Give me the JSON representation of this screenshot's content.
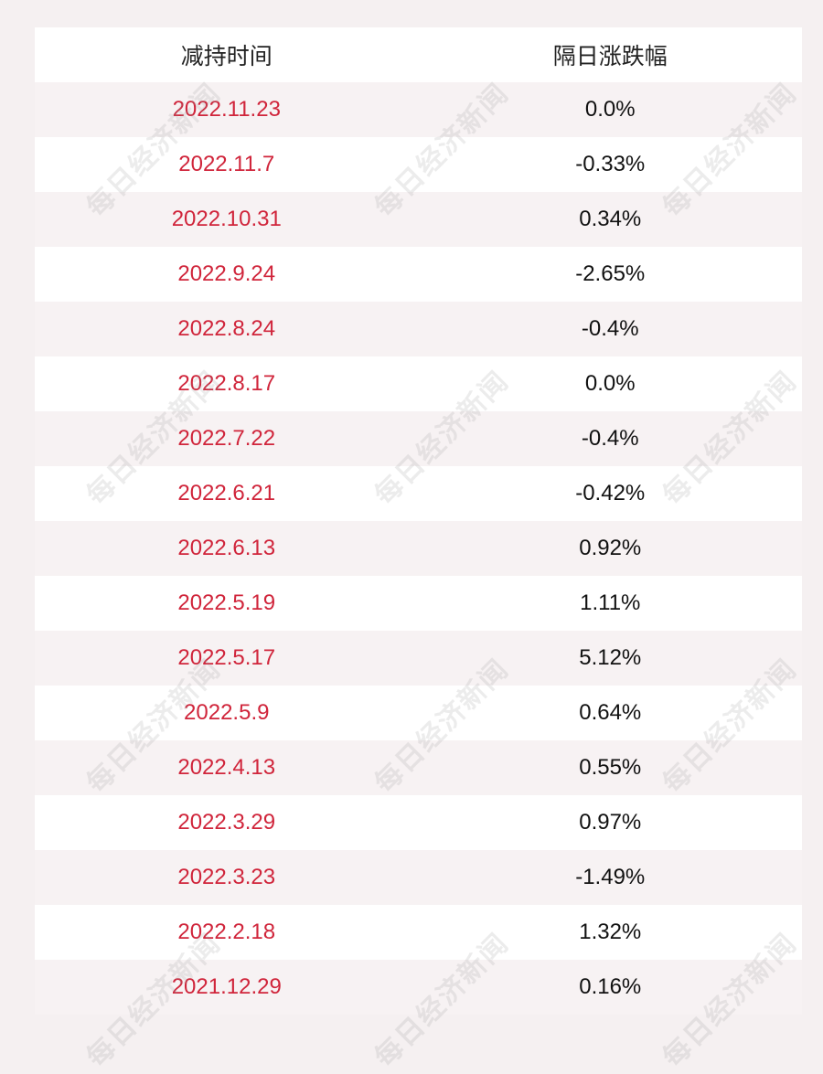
{
  "header": {
    "col_date": "减持时间",
    "col_change": "隔日涨跌幅"
  },
  "rows": [
    {
      "date": "2022.11.23",
      "change": "0.0%"
    },
    {
      "date": "2022.11.7",
      "change": "-0.33%"
    },
    {
      "date": "2022.10.31",
      "change": "0.34%"
    },
    {
      "date": "2022.9.24",
      "change": "-2.65%"
    },
    {
      "date": "2022.8.24",
      "change": "-0.4%"
    },
    {
      "date": "2022.8.17",
      "change": "0.0%"
    },
    {
      "date": "2022.7.22",
      "change": "-0.4%"
    },
    {
      "date": "2022.6.21",
      "change": "-0.42%"
    },
    {
      "date": "2022.6.13",
      "change": "0.92%"
    },
    {
      "date": "2022.5.19",
      "change": "1.11%"
    },
    {
      "date": "2022.5.17",
      "change": "5.12%"
    },
    {
      "date": "2022.5.9",
      "change": "0.64%"
    },
    {
      "date": "2022.4.13",
      "change": "0.55%"
    },
    {
      "date": "2022.3.29",
      "change": "0.97%"
    },
    {
      "date": "2022.3.23",
      "change": "-1.49%"
    },
    {
      "date": "2022.2.18",
      "change": "1.32%"
    },
    {
      "date": "2021.12.29",
      "change": "0.16%"
    }
  ],
  "watermark": "每日经济新闻",
  "colors": {
    "date": "#d0253b",
    "value": "#111111",
    "bg": "#f5f0f1"
  }
}
